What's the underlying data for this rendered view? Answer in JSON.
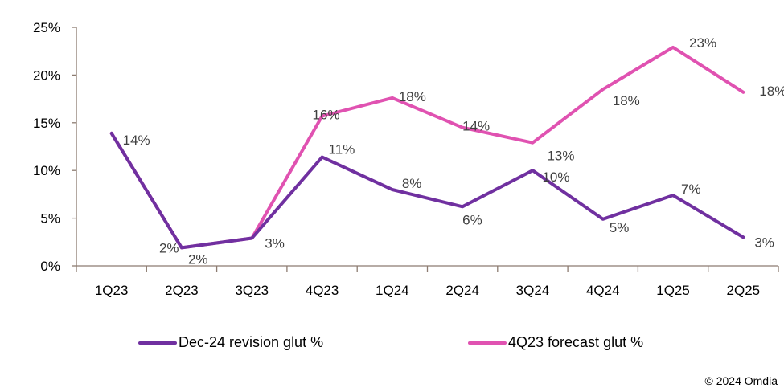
{
  "chart_data": {
    "type": "line",
    "title": "",
    "xlabel": "",
    "ylabel": "",
    "categories": [
      "1Q23",
      "2Q23",
      "3Q23",
      "4Q23",
      "1Q24",
      "2Q24",
      "3Q24",
      "4Q24",
      "1Q25",
      "2Q25"
    ],
    "ylim": [
      0,
      25
    ],
    "yticks": [
      0,
      5,
      10,
      15,
      20,
      25
    ],
    "ytick_labels": [
      "0%",
      "5%",
      "10%",
      "15%",
      "20%",
      "25%"
    ],
    "grid": false,
    "legend_position": "bottom",
    "series": [
      {
        "name": "4Q23 forecast glut %",
        "color": "#e052b1",
        "values": [
          13.9,
          1.9,
          2.9,
          15.7,
          17.6,
          14.5,
          12.9,
          18.5,
          22.9,
          18.2
        ],
        "labels": [
          "14%",
          "2%",
          "",
          "16%",
          "18%",
          "14%",
          "13%",
          "18%",
          "23%",
          "18%"
        ]
      },
      {
        "name": "Dec-24 revision glut %",
        "color": "#7030a0",
        "values": [
          13.9,
          1.9,
          2.9,
          11.4,
          8.0,
          6.2,
          10.0,
          4.9,
          7.4,
          3.0
        ],
        "labels": [
          "",
          "2%",
          "3%",
          "11%",
          "8%",
          "6%",
          "10%",
          "5%",
          "7%",
          "3%"
        ]
      }
    ]
  },
  "legend": {
    "item1": "Dec-24 revision glut %",
    "item2": "4Q23 forecast glut %"
  },
  "footer": {
    "copyright": "© 2024 Omdia"
  }
}
